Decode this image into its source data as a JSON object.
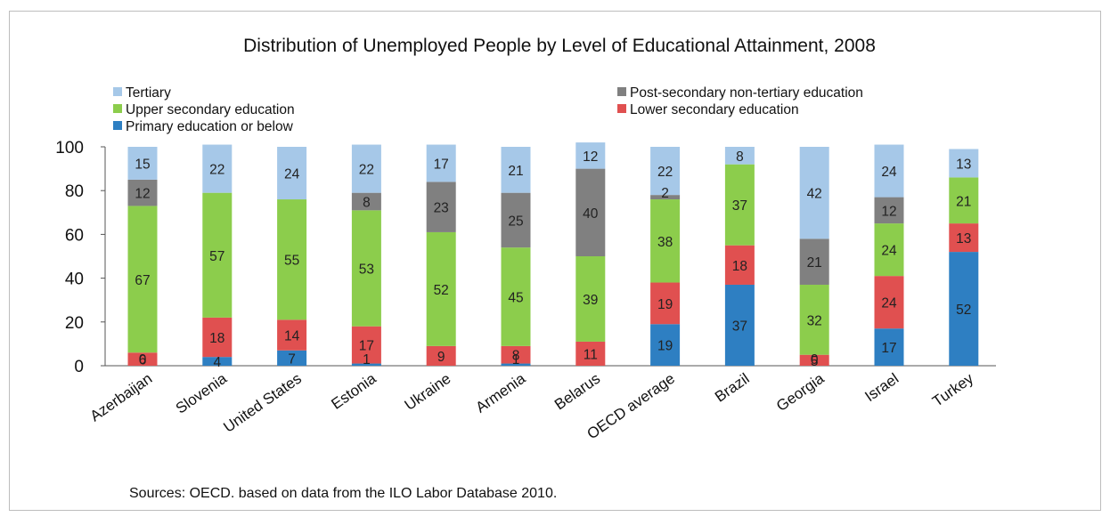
{
  "chart_data": {
    "type": "bar",
    "stacked": true,
    "title": "Distribution of Unemployed People by Level of Educational Attainment, 2008",
    "source": "Sources: OECD. based on data from the ILO Labor Database 2010.",
    "ylim": [
      0,
      100
    ],
    "yticks": [
      "0",
      "20",
      "40",
      "60",
      "80",
      "100"
    ],
    "grid": false,
    "legend_position": "top",
    "categories": [
      "Azerbaijan",
      "Slovenia",
      "United States",
      "Estonia",
      "Ukraine",
      "Armenia",
      "Belarus",
      "OECD average",
      "Brazil",
      "Georgia",
      "Israel",
      "Turkey"
    ],
    "series": [
      {
        "name": "Primary education or below",
        "color": "#2e7fc2",
        "values": [
          0,
          4,
          7,
          1,
          0,
          1,
          0,
          19,
          37,
          0,
          17,
          52
        ],
        "labels": [
          "0",
          "4",
          "7",
          "1",
          "",
          "1",
          "",
          "19",
          "37",
          "0",
          "17",
          "52"
        ]
      },
      {
        "name": "Lower secondary education",
        "color": "#e05050",
        "values": [
          6,
          18,
          14,
          17,
          9,
          8,
          11,
          19,
          18,
          5,
          24,
          13
        ],
        "labels": [
          "6",
          "18",
          "14",
          "17",
          "9",
          "8",
          "11",
          "19",
          "18",
          "5",
          "24",
          "13"
        ]
      },
      {
        "name": "Upper secondary education",
        "color": "#8ccd4c",
        "values": [
          67,
          57,
          55,
          53,
          52,
          45,
          39,
          38,
          37,
          32,
          24,
          21
        ],
        "labels": [
          "67",
          "57",
          "55",
          "53",
          "52",
          "45",
          "39",
          "38",
          "37",
          "32",
          "24",
          "21"
        ]
      },
      {
        "name": "Post-secondary non-tertiary education",
        "color": "#808080",
        "values": [
          12,
          0,
          0,
          8,
          23,
          25,
          40,
          2,
          0,
          21,
          12,
          0
        ],
        "labels": [
          "12",
          "",
          "",
          "8",
          "23",
          "25",
          "40",
          "2",
          "",
          "21",
          "12",
          ""
        ]
      },
      {
        "name": "Tertiary",
        "color": "#a6c8e8",
        "values": [
          15,
          22,
          24,
          22,
          17,
          21,
          12,
          22,
          8,
          42,
          24,
          13
        ],
        "labels": [
          "15",
          "22",
          "24",
          "22",
          "17",
          "21",
          "12",
          "22",
          "8",
          "42",
          "24",
          "13"
        ]
      }
    ],
    "legend": {
      "left": [
        "Tertiary",
        "Upper secondary education",
        "Primary education or below"
      ],
      "right": [
        "Post-secondary non-tertiary education",
        "Lower secondary education"
      ]
    }
  }
}
